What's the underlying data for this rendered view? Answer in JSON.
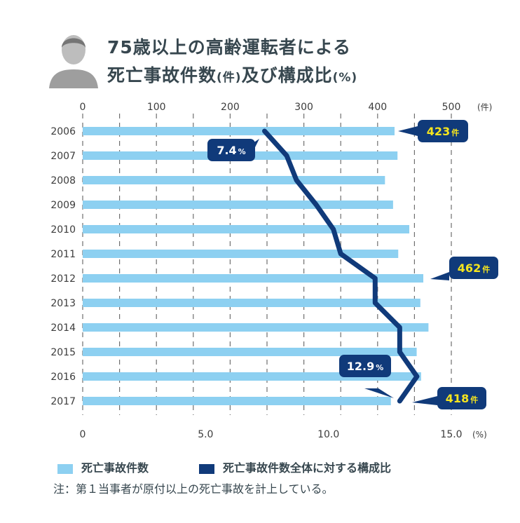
{
  "title": {
    "line1": "75歳以上の高齢運転者による",
    "line2": "死亡事故件数",
    "line2_unit": "(件)",
    "line2_rest": "及び構成比",
    "line2_pct": "(%)"
  },
  "colors": {
    "bar": "#8dd0f1",
    "line": "#103a7a",
    "callout": "#103a7a",
    "callout_text": "#ffffff",
    "callout_highlight": "#f6e51e",
    "axis_text": "#3c3c3c"
  },
  "chart_data": {
    "type": "bar",
    "orientation": "horizontal",
    "categories": [
      "2006",
      "2007",
      "2008",
      "2009",
      "2010",
      "2011",
      "2012",
      "2013",
      "2014",
      "2015",
      "2016",
      "2017"
    ],
    "series": [
      {
        "name": "死亡事故件数",
        "type": "bar",
        "axis": "top",
        "values": [
          423,
          427,
          410,
          421,
          443,
          428,
          462,
          458,
          469,
          453,
          459,
          418
        ]
      },
      {
        "name": "死亡事故件数全体に対する構成比",
        "type": "line",
        "axis": "bottom",
        "values": [
          7.4,
          8.3,
          8.7,
          9.5,
          10.2,
          10.5,
          11.9,
          11.9,
          12.9,
          12.9,
          13.6,
          12.9
        ]
      }
    ],
    "top_axis": {
      "ticks": [
        "0",
        "100",
        "200",
        "300",
        "400",
        "500"
      ],
      "unit": "(件)",
      "min": 0,
      "max": 500
    },
    "bottom_axis": {
      "ticks": [
        "0",
        "5.0",
        "10.0",
        "15.0"
      ],
      "unit": "(%)",
      "min": 0,
      "max": 15
    },
    "annotations": [
      {
        "value": "423",
        "unit": "件",
        "category": "2006",
        "series": "bar"
      },
      {
        "value": "462",
        "unit": "件",
        "category": "2012",
        "series": "bar"
      },
      {
        "value": "418",
        "unit": "件",
        "category": "2017",
        "series": "bar"
      },
      {
        "value": "7.4",
        "unit": "%",
        "category": "2006",
        "series": "line"
      },
      {
        "value": "12.9",
        "unit": "%",
        "category": "2017",
        "series": "line"
      }
    ],
    "grid": "dashed-vertical"
  },
  "legend": {
    "bar_label": "死亡事故件数",
    "line_label": "死亡事故件数全体に対する構成比"
  },
  "note": "注：第１当事者が原付以上の死亡事故を計上している。"
}
